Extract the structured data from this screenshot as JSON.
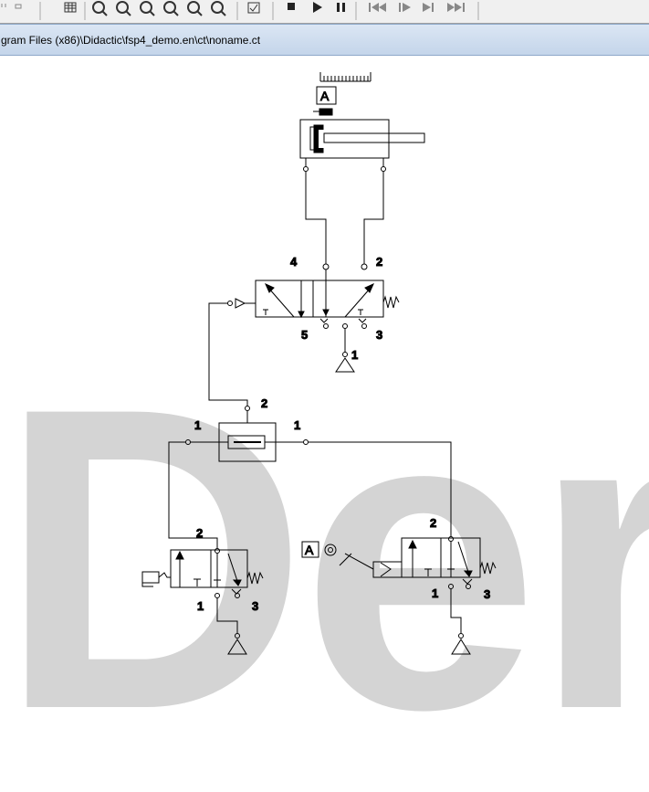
{
  "window": {
    "path": "gram Files (x86)\\Didactic\\fsp4_demo.en\\ct\\noname.ct"
  },
  "toolbar": {
    "buttons": [
      {
        "name": "cut-icon"
      },
      {
        "name": "paste-icon"
      },
      {
        "name": "grid-icon"
      },
      {
        "name": "zoom-in-icon"
      },
      {
        "name": "zoom-out-icon"
      },
      {
        "name": "zoom-window-icon"
      },
      {
        "name": "zoom-fit-icon"
      },
      {
        "name": "zoom-previous-icon"
      },
      {
        "name": "zoom-next-icon"
      },
      {
        "name": "check-icon"
      },
      {
        "name": "stop-icon"
      },
      {
        "name": "play-icon"
      },
      {
        "name": "pause-icon"
      },
      {
        "name": "reset-icon"
      },
      {
        "name": "step-icon"
      },
      {
        "name": "step-forward-icon"
      },
      {
        "name": "end-icon"
      }
    ]
  },
  "canvas": {
    "watermark": "Der"
  },
  "circuit": {
    "cylinder_label": "A",
    "valve_main": {
      "port_4": "4",
      "port_2": "2",
      "port_5": "5",
      "port_3": "3",
      "port_1": "1"
    },
    "shuttle": {
      "port_left": "1",
      "port_right": "1",
      "port_out": "2"
    },
    "valve_left": {
      "port_2": "2",
      "port_1": "1",
      "port_3": "3"
    },
    "valve_right": {
      "port_2": "2",
      "port_1": "1",
      "port_3": "3"
    },
    "roller_label": "A"
  },
  "colors": {
    "titlebar": "#c4d5ea",
    "toolbar": "#f0f0f0",
    "watermark": "#d4d4d4"
  }
}
